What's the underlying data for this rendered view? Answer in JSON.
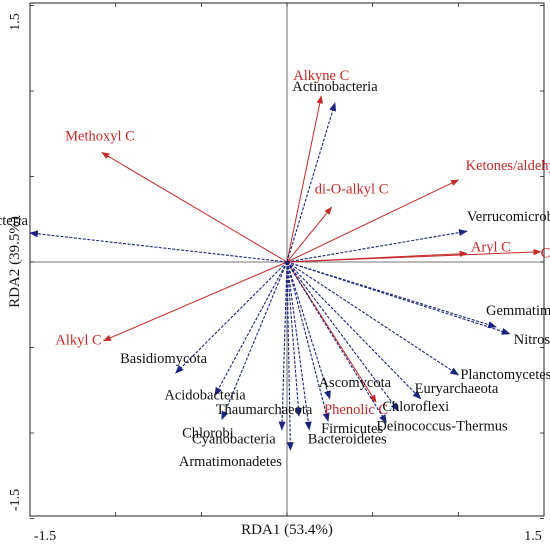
{
  "chart_data": {
    "type": "scatter",
    "subtype": "rda-biplot",
    "xlabel": "RDA1 (53.4%)",
    "ylabel": "RDA2 (39.5%)",
    "xlim": [
      -1.5,
      1.5
    ],
    "ylim": [
      -1.5,
      1.5
    ],
    "x_tick_labels": [
      "-1.5",
      "1.5"
    ],
    "y_tick_labels": [
      "1.5",
      "-1.5"
    ],
    "grid": false,
    "zero_lines": true,
    "env_color": "#c62828",
    "species_color": "#1a237e",
    "series": [
      {
        "role": "environmental-variables",
        "color": "#c62828",
        "vectors": [
          {
            "label": "Alkyne C",
            "x": 0.2,
            "y": 0.97
          },
          {
            "label": "Methoxyl C",
            "x": -1.08,
            "y": 0.64
          },
          {
            "label": "Ketones/aldehydes",
            "x": 1.0,
            "y": 0.48
          },
          {
            "label": "di-O-alkyl C",
            "x": 0.26,
            "y": 0.32
          },
          {
            "label": "Aryl C",
            "x": 1.05,
            "y": 0.05
          },
          {
            "label": "COO/NC=O",
            "x": 1.48,
            "y": 0.06
          },
          {
            "label": "Alkyl C",
            "x": -1.07,
            "y": -0.46
          },
          {
            "label": "Phenolic C",
            "x": 0.52,
            "y": -0.82
          }
        ]
      },
      {
        "role": "phyla",
        "color": "#1a237e",
        "vectors": [
          {
            "label": "Actinobacteria",
            "x": 0.28,
            "y": 0.93
          },
          {
            "label": "Proteobacteria",
            "x": -1.5,
            "y": 0.17
          },
          {
            "label": "Verrucomicrobia",
            "x": 1.05,
            "y": 0.18
          },
          {
            "label": "Gemmatimonadetes",
            "x": 1.22,
            "y": -0.38
          },
          {
            "label": "Nitrospirae",
            "x": 1.3,
            "y": -0.42
          },
          {
            "label": "Basidiomycota",
            "x": -0.65,
            "y": -0.65
          },
          {
            "label": "Acidobacteria",
            "x": -0.42,
            "y": -0.78
          },
          {
            "label": "Chlorobi",
            "x": -0.38,
            "y": -0.92
          },
          {
            "label": "Thaumarchaeota",
            "x": 0.07,
            "y": -0.9
          },
          {
            "label": "Cyanobacteria",
            "x": -0.03,
            "y": -0.98
          },
          {
            "label": "Armatimonadetes",
            "x": 0.02,
            "y": -1.1
          },
          {
            "label": "Ascomycota",
            "x": 0.25,
            "y": -0.8
          },
          {
            "label": "Firmicutes",
            "x": 0.24,
            "y": -0.93
          },
          {
            "label": "Bacteroidetes",
            "x": 0.13,
            "y": -0.98
          },
          {
            "label": "Planctomycetes",
            "x": 1.0,
            "y": -0.66
          },
          {
            "label": "Euryarchaeota",
            "x": 0.78,
            "y": -0.8
          },
          {
            "label": "Chloroflexi",
            "x": 0.65,
            "y": -0.87
          },
          {
            "label": "Deinococcus-Thermus",
            "x": 0.58,
            "y": -0.94
          }
        ]
      }
    ]
  }
}
